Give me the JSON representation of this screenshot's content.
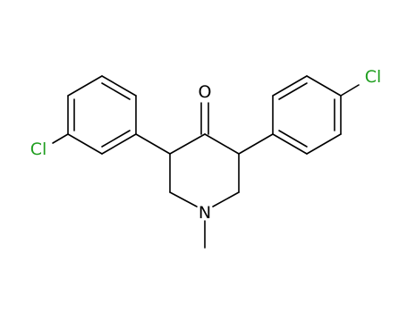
{
  "atoms": [
    "O",
    "Cl",
    "Cl",
    "N"
  ]
}
